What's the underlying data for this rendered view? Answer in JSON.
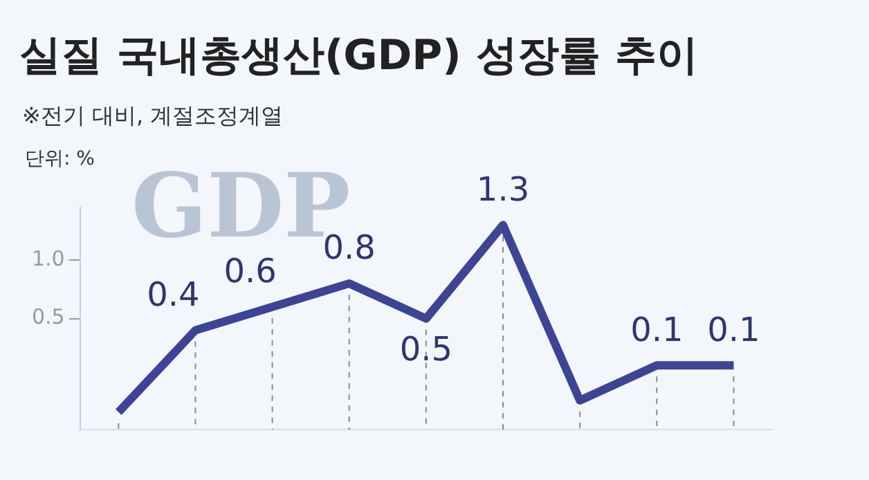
{
  "chart_data": {
    "type": "line",
    "title": "실질 국내총생산(GDP) 성장률 추이",
    "subtitle": "※전기 대비, 계절조정계열",
    "ylabel": "단위: %",
    "annotations": [
      "GDP"
    ],
    "categories": [
      null,
      null,
      null,
      null,
      null,
      null,
      null,
      null,
      null
    ],
    "series": [
      {
        "color": "#3b4495",
        "values": [
          -0.3,
          0.4,
          0.6,
          0.8,
          0.5,
          1.3,
          -0.2,
          0.1,
          0.1
        ],
        "value_labels": [
          null,
          "0.4",
          "0.6",
          "0.8",
          "0.5",
          "1.3",
          null,
          "0.1",
          "0.1"
        ]
      }
    ],
    "ylim": [
      -0.45,
      1.45
    ],
    "yticks": [
      0.5,
      {
        "value": 1,
        "label": "1.0"
      }
    ],
    "grid": false,
    "legend": false,
    "marker": "none",
    "line_style": "solid"
  }
}
